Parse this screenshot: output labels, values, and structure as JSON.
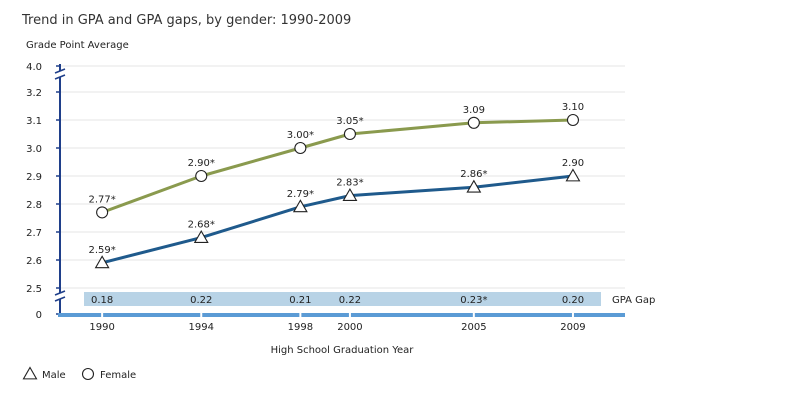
{
  "chart_data": {
    "type": "line",
    "title": "Trend in GPA and GPA gaps, by gender: 1990-2009",
    "ylabel": "Grade Point Average",
    "xlabel": "High School Graduation Year",
    "ylim": [
      2.5,
      4.0
    ],
    "y_ticks": [
      "4.0",
      "3.2",
      "3.1",
      "3.0",
      "2.9",
      "2.8",
      "2.7",
      "2.6",
      "2.5",
      "0"
    ],
    "y_axis_break": true,
    "x": [
      1990,
      1994,
      1998,
      2000,
      2005,
      2009
    ],
    "x_tick_labels": [
      "1990",
      "1994",
      "1998",
      "2000",
      "2005",
      "2009"
    ],
    "series": [
      {
        "name": "Female",
        "marker": "circle",
        "color": "#8a9a4e",
        "values": [
          2.77,
          2.9,
          3.0,
          3.05,
          3.09,
          3.1
        ],
        "labels": [
          "2.77*",
          "2.90*",
          "3.00*",
          "3.05*",
          "3.09",
          "3.10"
        ]
      },
      {
        "name": "Male",
        "marker": "triangle",
        "color": "#1f5a8c",
        "values": [
          2.59,
          2.68,
          2.79,
          2.83,
          2.86,
          2.9
        ],
        "labels": [
          "2.59*",
          "2.68*",
          "2.79*",
          "2.83*",
          "2.86*",
          "2.90"
        ]
      }
    ],
    "gap": {
      "label": "GPA Gap",
      "values": [
        "0.18",
        "0.22",
        "0.21",
        "0.22",
        "0.23*",
        "0.20"
      ],
      "color": "#b8d3e6"
    },
    "legend": [
      {
        "label": "Male",
        "marker": "triangle"
      },
      {
        "label": "Female",
        "marker": "circle"
      }
    ],
    "legend_placement": "bottom-left",
    "axis_color": "#1f3f8a",
    "baseline_color": "#5b9bd5",
    "grid": true
  }
}
